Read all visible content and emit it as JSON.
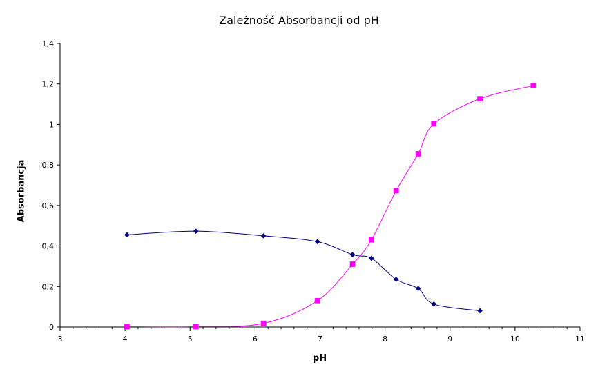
{
  "chart_data": {
    "type": "line",
    "title": "Zależność Absorbancji od pH",
    "xlabel": "pH",
    "ylabel": "Absorbancja",
    "xlim": [
      3,
      11
    ],
    "ylim": [
      0,
      1.4
    ],
    "x_ticks": [
      "3",
      "4",
      "5",
      "6",
      "7",
      "8",
      "9",
      "10",
      "11"
    ],
    "y_ticks": [
      "0",
      "0,2",
      "0,4",
      "0,6",
      "0,8",
      "1",
      "1,2",
      "1,4"
    ],
    "grid": false,
    "legend": "none",
    "series": [
      {
        "color": "#000080",
        "marker": "diamond",
        "x": [
          4.03,
          5.09,
          6.13,
          6.96,
          7.5,
          7.79,
          8.17,
          8.51,
          8.75,
          9.46
        ],
        "y": [
          0.455,
          0.473,
          0.45,
          0.421,
          0.357,
          0.339,
          0.235,
          0.19,
          0.113,
          0.08
        ]
      },
      {
        "color": "#ff00ff",
        "marker": "square",
        "x": [
          4.03,
          5.09,
          6.13,
          6.96,
          7.5,
          7.79,
          8.17,
          8.51,
          8.75,
          9.46,
          10.28
        ],
        "y": [
          0.002,
          0.002,
          0.018,
          0.13,
          0.31,
          0.43,
          0.673,
          0.855,
          1.003,
          1.127,
          1.192
        ]
      }
    ]
  }
}
